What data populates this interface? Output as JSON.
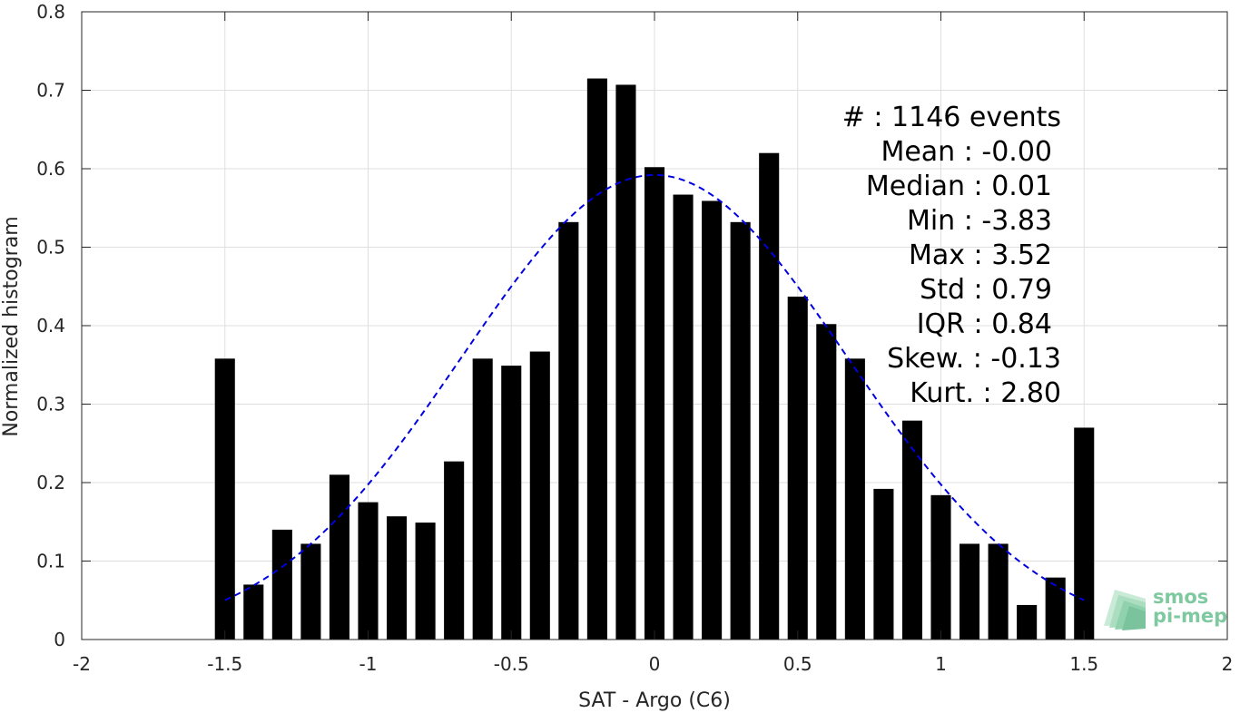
{
  "chart_data": {
    "type": "bar",
    "xlabel": "SAT - Argo (C6)",
    "ylabel": "Normalized histogram",
    "xlim": [
      -2,
      2
    ],
    "ylim": [
      0,
      0.8
    ],
    "xticks": [
      -2,
      -1.5,
      -1,
      -0.5,
      0,
      0.5,
      1,
      1.5,
      2
    ],
    "xtick_labels": [
      "-2",
      "-1.5",
      "-1",
      "-0.5",
      "0",
      "0.5",
      "1",
      "1.5",
      "2"
    ],
    "yticks": [
      0,
      0.1,
      0.2,
      0.3,
      0.4,
      0.5,
      0.6,
      0.7,
      0.8
    ],
    "ytick_labels": [
      "0",
      "0.1",
      "0.2",
      "0.3",
      "0.4",
      "0.5",
      "0.6",
      "0.7",
      "0.8"
    ],
    "grid": true,
    "bar_width": 0.07,
    "bars": [
      {
        "x": -1.5,
        "y": 0.358
      },
      {
        "x": -1.4,
        "y": 0.07
      },
      {
        "x": -1.3,
        "y": 0.14
      },
      {
        "x": -1.2,
        "y": 0.122
      },
      {
        "x": -1.1,
        "y": 0.21
      },
      {
        "x": -1.0,
        "y": 0.175
      },
      {
        "x": -0.9,
        "y": 0.157
      },
      {
        "x": -0.8,
        "y": 0.149
      },
      {
        "x": -0.7,
        "y": 0.227
      },
      {
        "x": -0.6,
        "y": 0.358
      },
      {
        "x": -0.5,
        "y": 0.349
      },
      {
        "x": -0.4,
        "y": 0.367
      },
      {
        "x": -0.3,
        "y": 0.532
      },
      {
        "x": -0.2,
        "y": 0.715
      },
      {
        "x": -0.1,
        "y": 0.707
      },
      {
        "x": 0.0,
        "y": 0.602
      },
      {
        "x": 0.1,
        "y": 0.567
      },
      {
        "x": 0.2,
        "y": 0.559
      },
      {
        "x": 0.3,
        "y": 0.532
      },
      {
        "x": 0.4,
        "y": 0.62
      },
      {
        "x": 0.5,
        "y": 0.437
      },
      {
        "x": 0.6,
        "y": 0.402
      },
      {
        "x": 0.7,
        "y": 0.358
      },
      {
        "x": 0.8,
        "y": 0.192
      },
      {
        "x": 0.9,
        "y": 0.279
      },
      {
        "x": 1.0,
        "y": 0.184
      },
      {
        "x": 1.1,
        "y": 0.122
      },
      {
        "x": 1.2,
        "y": 0.122
      },
      {
        "x": 1.3,
        "y": 0.044
      },
      {
        "x": 1.4,
        "y": 0.079
      },
      {
        "x": 1.5,
        "y": 0.27
      }
    ],
    "fit_curve": {
      "style": "dashed",
      "color": "#0000e0",
      "mean": 0.0,
      "std": 0.675,
      "peak": 0.592,
      "x_range": [
        -1.5,
        1.5
      ]
    },
    "bar_color": "#000000"
  },
  "stats": {
    "events": "#  : 1146 events",
    "mean": "Mean : -0.00",
    "median": "Median : 0.01",
    "min": "Min : -3.83",
    "max": "Max : 3.52",
    "std": "Std : 0.79",
    "iqr": "IQR : 0.84",
    "skew": "Skew. : -0.13",
    "kurt": "Kurt. : 2.80"
  },
  "logo": {
    "line1": "smos",
    "line2": "pi-mep"
  }
}
